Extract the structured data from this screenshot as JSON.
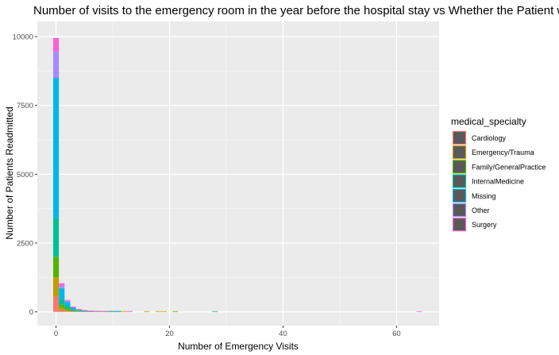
{
  "chart_data": {
    "type": "bar",
    "stacked": true,
    "title": "Number of visits to the emergency room in the year before the hospital stay vs Whether the Patient was",
    "xlabel": "Number of Emergency Visits",
    "ylabel": "Number of Patients Readmitted",
    "xlim": [
      -3.3,
      67.5
    ],
    "ylim": [
      -500,
      10550
    ],
    "x_ticks": [
      0,
      20,
      40,
      60
    ],
    "y_ticks": [
      0,
      2500,
      5000,
      7500,
      10000
    ],
    "x_tick_labels": [
      "0",
      "20",
      "40",
      "60"
    ],
    "y_tick_labels": [
      "0",
      "2500",
      "5000",
      "7500",
      "10000"
    ],
    "grid": true,
    "legend": {
      "title": "medical_specialty",
      "position": "right"
    },
    "x": [
      0,
      1,
      2,
      3,
      4,
      5,
      6,
      7,
      8,
      9,
      10,
      11,
      12,
      13,
      16,
      18,
      19,
      21,
      28,
      64
    ],
    "series": [
      {
        "name": "Cardiology",
        "color": "#F8766D",
        "values": [
          550,
          50,
          20,
          10,
          5,
          3,
          2,
          1,
          1,
          0,
          0,
          0,
          0,
          0,
          0,
          0,
          0,
          0,
          0,
          0
        ]
      },
      {
        "name": "Emergency/Trauma",
        "color": "#C49A00",
        "values": [
          700,
          90,
          40,
          15,
          8,
          4,
          2,
          2,
          1,
          1,
          1,
          1,
          1,
          0,
          3,
          3,
          3,
          0,
          0,
          0
        ]
      },
      {
        "name": "Family/GeneralPractice",
        "color": "#53B400",
        "values": [
          750,
          120,
          60,
          25,
          10,
          6,
          3,
          2,
          1,
          1,
          1,
          1,
          0,
          0,
          0,
          0,
          0,
          3,
          0,
          0
        ]
      },
      {
        "name": "InternalMedicine",
        "color": "#00C094",
        "values": [
          1400,
          200,
          100,
          40,
          20,
          10,
          5,
          3,
          2,
          1,
          1,
          1,
          0,
          0,
          0,
          0,
          0,
          0,
          3,
          0
        ]
      },
      {
        "name": "Missing",
        "color": "#00B6EB",
        "values": [
          5100,
          400,
          130,
          60,
          28,
          15,
          7,
          4,
          2,
          1,
          1,
          1,
          0,
          0,
          0,
          0,
          0,
          0,
          0,
          0
        ]
      },
      {
        "name": "Other",
        "color": "#A58AFF",
        "values": [
          950,
          100,
          50,
          20,
          10,
          5,
          3,
          2,
          1,
          1,
          0,
          0,
          0,
          1,
          0,
          0,
          0,
          0,
          0,
          0
        ]
      },
      {
        "name": "Surgery",
        "color": "#FB61D7",
        "values": [
          500,
          80,
          30,
          15,
          7,
          4,
          2,
          2,
          1,
          1,
          0,
          0,
          0,
          1,
          0,
          0,
          0,
          0,
          0,
          3
        ]
      }
    ]
  }
}
